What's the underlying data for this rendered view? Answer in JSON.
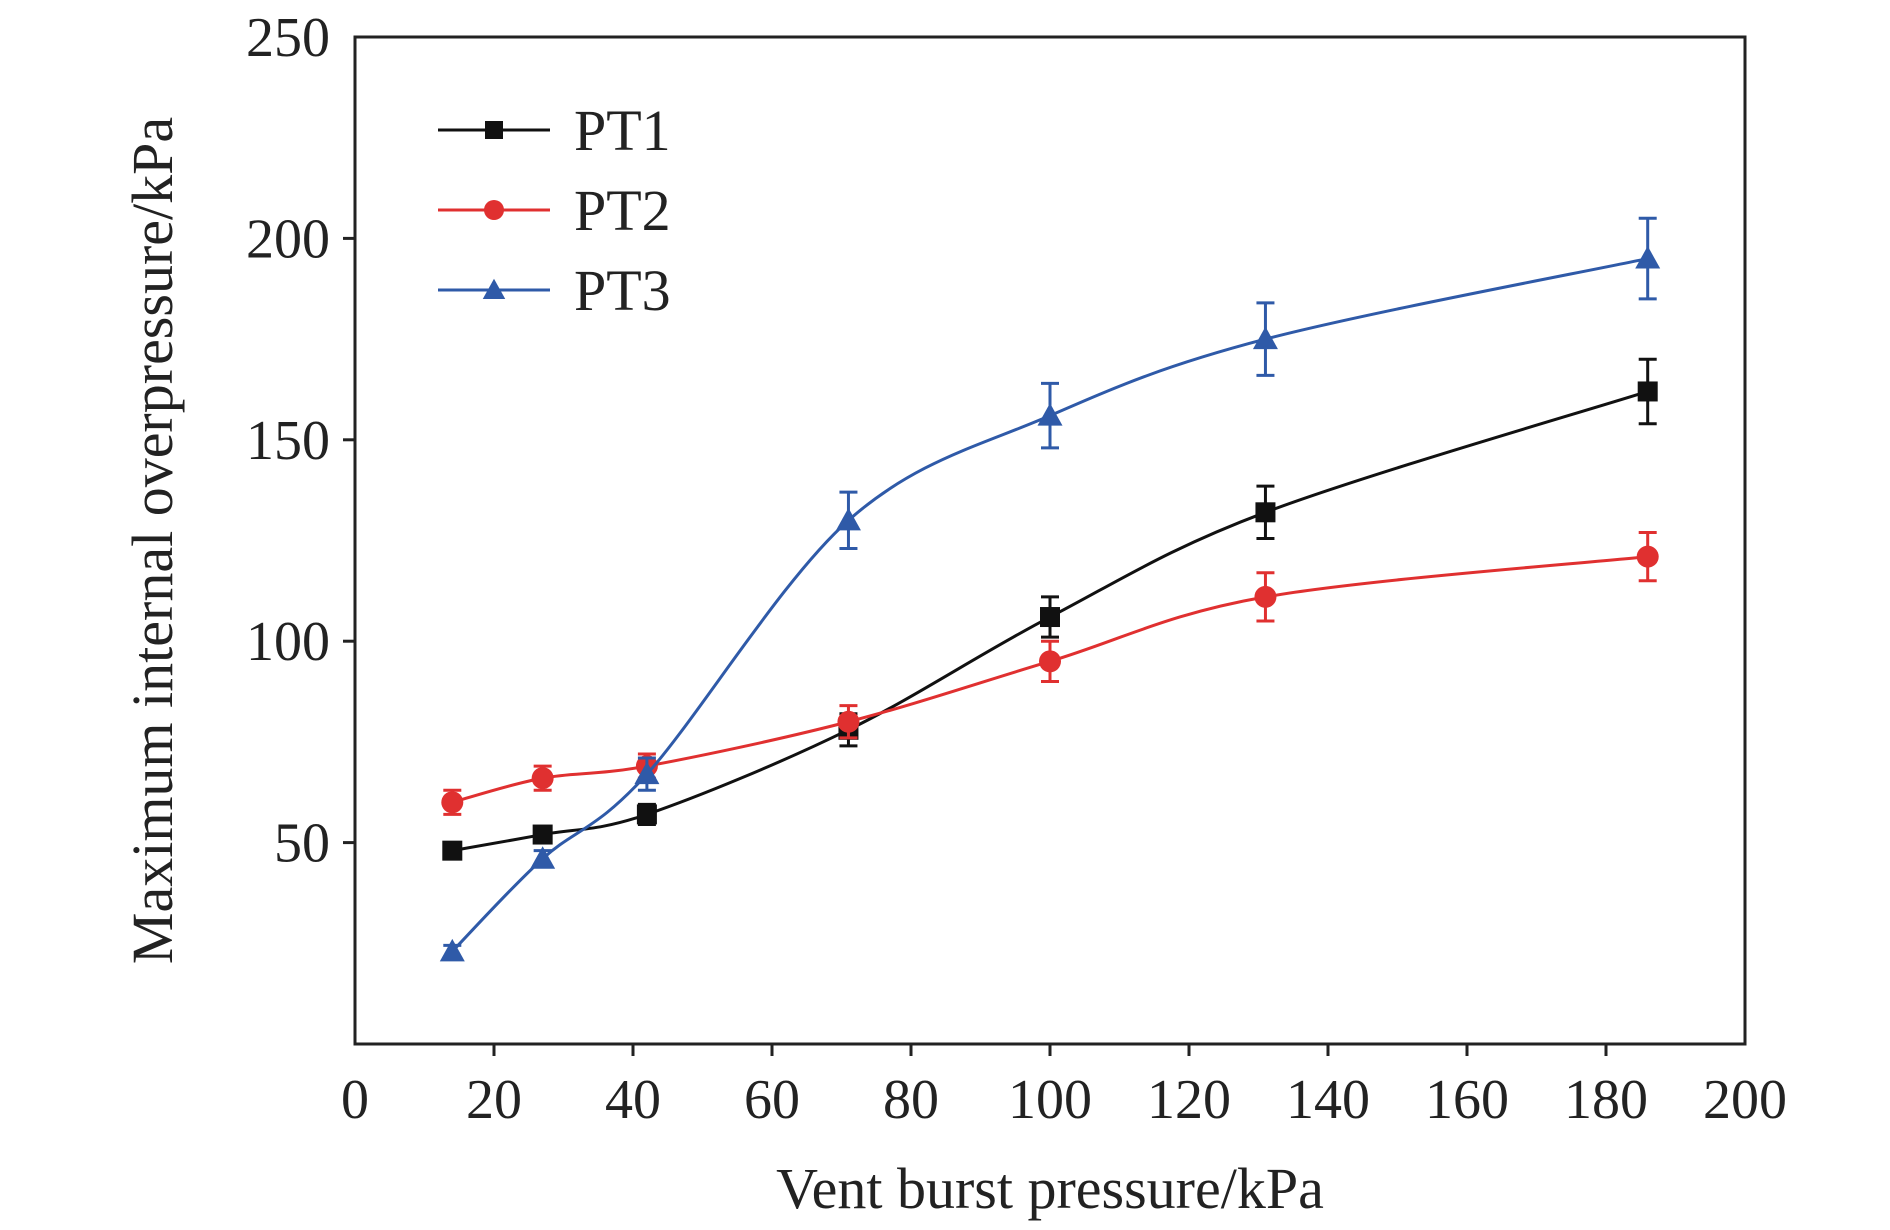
{
  "chart_data": {
    "type": "line",
    "title": "",
    "xlabel": "Vent burst pressure/kPa",
    "ylabel": "Maximum internal overpressure/kPa",
    "xlim": [
      0,
      200
    ],
    "ylim": [
      0,
      250
    ],
    "xticks": [
      "0",
      "20",
      "40",
      "60",
      "80",
      "100",
      "120",
      "140",
      "160",
      "180",
      "200"
    ],
    "yticks": [
      "50",
      "100",
      "150",
      "200",
      "250"
    ],
    "grid": false,
    "legend_position": "top-left",
    "series": [
      {
        "name": "PT1",
        "color": "#111111",
        "marker": "square",
        "x": [
          14,
          27,
          42,
          71,
          100,
          131,
          186
        ],
        "y": [
          48,
          52,
          57,
          78,
          106,
          132,
          162
        ],
        "error": [
          1.5,
          2,
          2.5,
          4,
          5,
          6.5,
          8
        ]
      },
      {
        "name": "PT2",
        "color": "#e03030",
        "marker": "circle",
        "x": [
          14,
          27,
          42,
          71,
          100,
          131,
          186
        ],
        "y": [
          60,
          66,
          69,
          80,
          95,
          111,
          121
        ],
        "error": [
          3,
          3,
          3,
          4,
          5,
          6,
          6
        ]
      },
      {
        "name": "PT3",
        "color": "#2f5aa8",
        "marker": "triangle",
        "x": [
          14,
          27,
          42,
          71,
          100,
          131,
          186
        ],
        "y": [
          23,
          46,
          67,
          130,
          156,
          175,
          195
        ],
        "error": [
          1.5,
          2,
          4,
          7,
          8,
          9,
          10
        ]
      }
    ]
  }
}
